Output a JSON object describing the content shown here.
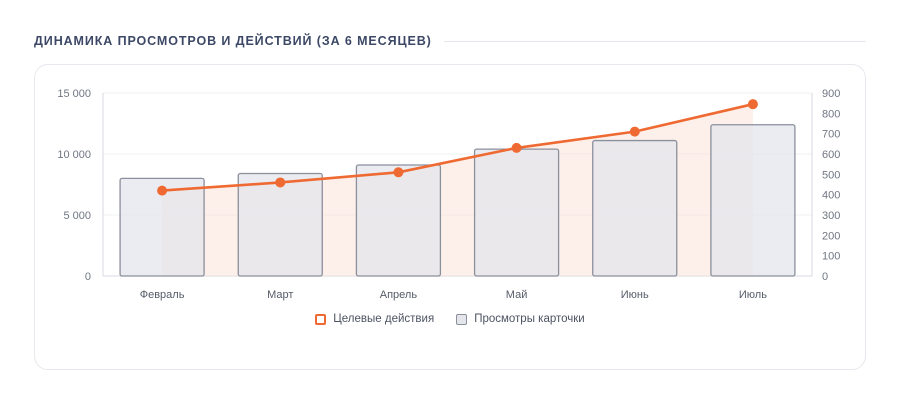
{
  "header": {
    "title": "ДИНАМИКА ПРОСМОТРОВ И ДЕЙСТВИЙ (ЗА 6 МЕСЯЦЕВ)"
  },
  "colors": {
    "line": "#ef6a32",
    "bar_fill": "#e4e6ec",
    "bar_stroke": "#8a8f9c",
    "area_fill": "#fbe3d8",
    "title": "#3c4866"
  },
  "chart_data": {
    "type": "bar",
    "categories": [
      "Февраль",
      "Март",
      "Апрель",
      "Май",
      "Июнь",
      "Июль"
    ],
    "series": [
      {
        "name": "Просмотры карточки",
        "type": "bar",
        "axis": "left",
        "values": [
          8000,
          8400,
          9100,
          10400,
          11100,
          12400
        ]
      },
      {
        "name": "Целевые действия",
        "type": "line",
        "axis": "right",
        "values": [
          420,
          460,
          510,
          630,
          710,
          845
        ]
      }
    ],
    "y_left": {
      "lim": [
        0,
        15000
      ],
      "ticks": [
        "0",
        "5 000",
        "10 000",
        "15 000"
      ],
      "tick_values": [
        0,
        5000,
        10000,
        15000
      ]
    },
    "y_right": {
      "lim": [
        0,
        900
      ],
      "ticks": [
        "0",
        "100",
        "200",
        "300",
        "400",
        "500",
        "600",
        "700",
        "800",
        "900"
      ],
      "tick_values": [
        0,
        100,
        200,
        300,
        400,
        500,
        600,
        700,
        800,
        900
      ]
    },
    "grid": true,
    "legend_position": "bottom",
    "legend": [
      {
        "name": "Целевые действия",
        "marker": "line"
      },
      {
        "name": "Просмотры карточки",
        "marker": "bar"
      }
    ]
  }
}
